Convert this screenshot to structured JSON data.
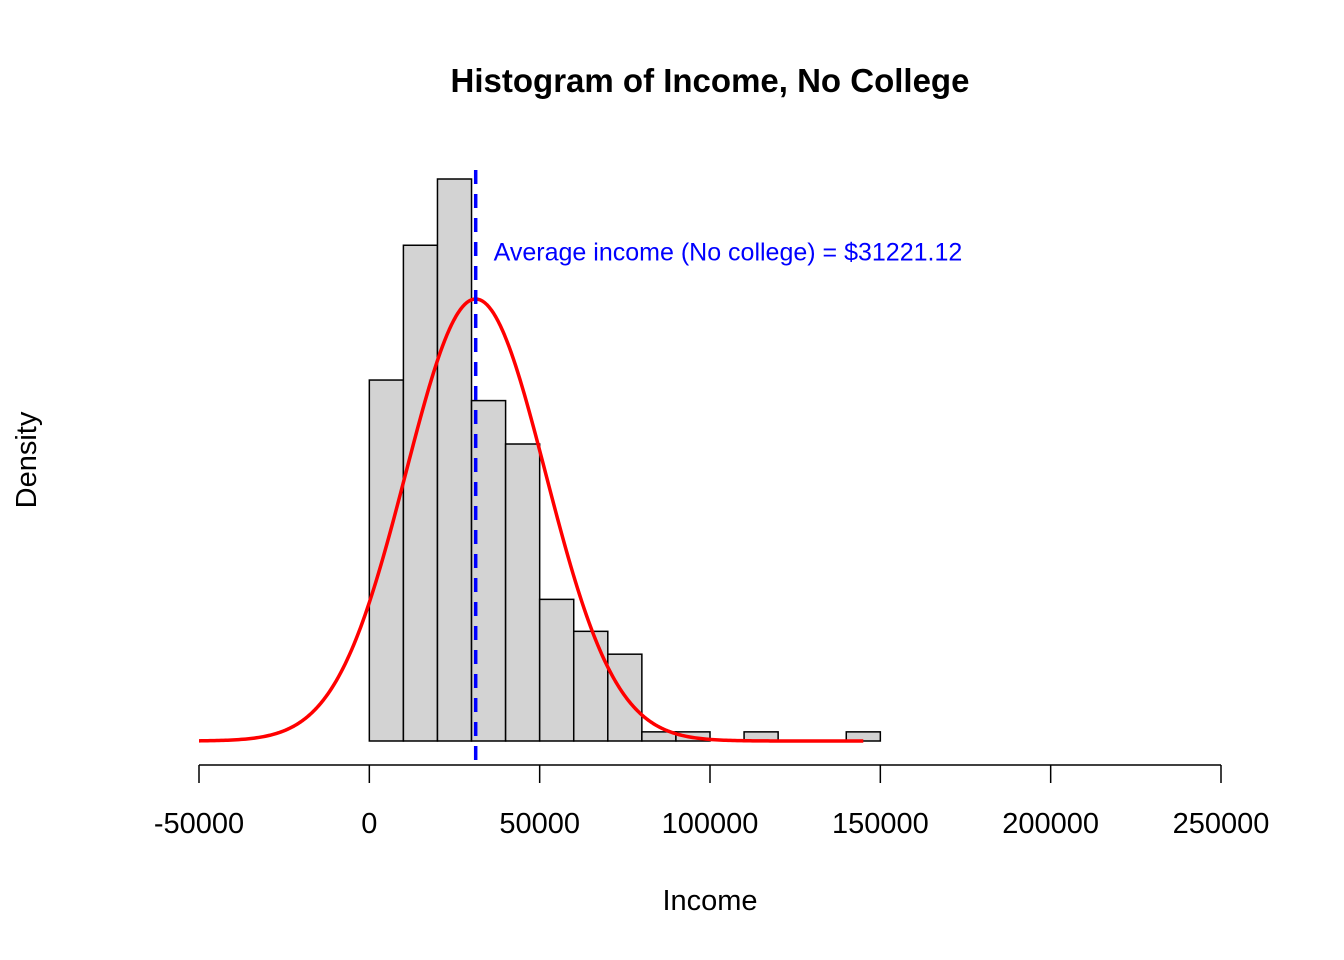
{
  "chart_data": {
    "type": "bar",
    "title": "Histogram of Income, No College",
    "xlabel": "Income",
    "ylabel": "Density",
    "xlim": [
      -50000,
      250000
    ],
    "x_ticks": [
      -50000,
      0,
      50000,
      100000,
      150000,
      200000,
      250000
    ],
    "x_tick_labels": [
      "-50000",
      "0",
      "50000",
      "100000",
      "150000",
      "200000",
      "250000"
    ],
    "y_axis_shown": false,
    "bin_width": 10000,
    "bins": [
      {
        "start": 0,
        "end": 10000,
        "density": 1.58e-05
      },
      {
        "start": 10000,
        "end": 20000,
        "density": 2.17e-05
      },
      {
        "start": 20000,
        "end": 30000,
        "density": 2.46e-05
      },
      {
        "start": 30000,
        "end": 40000,
        "density": 1.49e-05
      },
      {
        "start": 40000,
        "end": 50000,
        "density": 1.3e-05
      },
      {
        "start": 50000,
        "end": 60000,
        "density": 6.2e-06
      },
      {
        "start": 60000,
        "end": 70000,
        "density": 4.8e-06
      },
      {
        "start": 70000,
        "end": 80000,
        "density": 3.8e-06
      },
      {
        "start": 80000,
        "end": 90000,
        "density": 4e-07
      },
      {
        "start": 90000,
        "end": 100000,
        "density": 4e-07
      },
      {
        "start": 100000,
        "end": 110000,
        "density": 0
      },
      {
        "start": 110000,
        "end": 120000,
        "density": 4e-07
      },
      {
        "start": 120000,
        "end": 130000,
        "density": 0
      },
      {
        "start": 130000,
        "end": 140000,
        "density": 0
      },
      {
        "start": 140000,
        "end": 150000,
        "density": 4e-07
      }
    ],
    "normal_curve": {
      "mean": 31221.12,
      "sd": 20500,
      "x_range": [
        -50000,
        145000
      ],
      "color": "#ff0000"
    },
    "mean_line": {
      "value": 31221.12,
      "color": "#0000ff",
      "style": "dashed"
    },
    "annotation": {
      "text": "Average income (No college) = $31221.12",
      "x": 36500,
      "y": 2.12e-05,
      "color": "#0000ff"
    },
    "bar_fill": "#d3d3d3",
    "bar_stroke": "#000000",
    "grid": false
  }
}
